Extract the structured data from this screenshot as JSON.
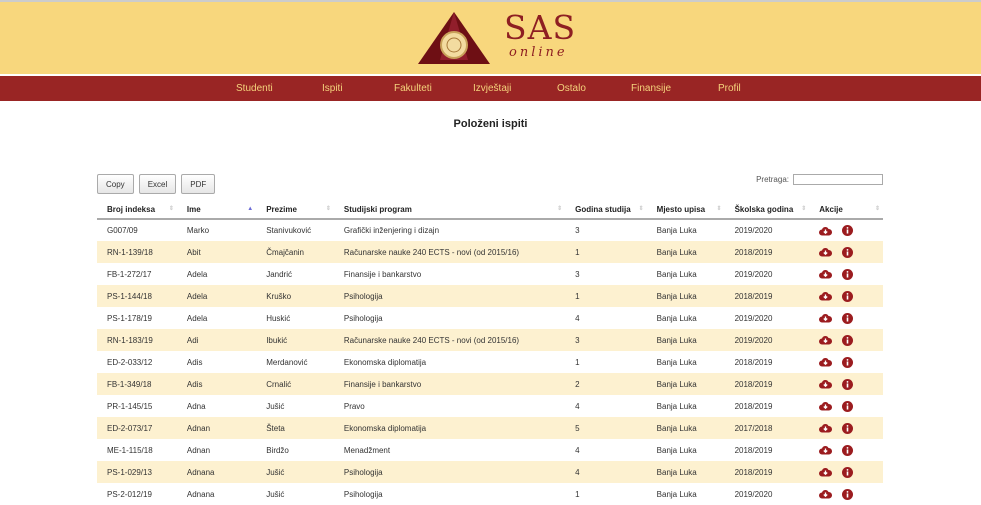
{
  "header": {
    "logo_title": "SAS",
    "logo_subtitle": "online"
  },
  "nav": [
    "Studenti",
    "Ispiti",
    "Fakulteti",
    "Izvještaji",
    "Ostalo",
    "Finansije",
    "Profil"
  ],
  "page_title": "Položeni ispiti",
  "toolbar": {
    "copy": "Copy",
    "excel": "Excel",
    "pdf": "PDF",
    "search_label": "Pretraga:",
    "search_value": ""
  },
  "colors": {
    "header_bg": "#f8d77d",
    "nav_bg": "#992524",
    "accent": "#8e1f22",
    "row_alt": "#fdf1d0"
  },
  "columns": [
    "Broj indeksa",
    "Ime",
    "Prezime",
    "Studijski program",
    "Godina studija",
    "Mjesto upisa",
    "Školska godina",
    "Akcije"
  ],
  "sorted_column": "Ime",
  "action_icons": [
    "cloud-download-icon",
    "info-icon"
  ],
  "rows": [
    [
      "G007/09",
      "Marko",
      "Stanivuković",
      "Grafički inženjering i dizajn",
      "3",
      "Banja Luka",
      "2019/2020"
    ],
    [
      "RN-1-139/18",
      "Abit",
      "Čmajčanin",
      "Računarske nauke 240 ECTS - novi (od 2015/16)",
      "1",
      "Banja Luka",
      "2018/2019"
    ],
    [
      "FB-1-272/17",
      "Adela",
      "Jandrić",
      "Finansije i bankarstvo",
      "3",
      "Banja Luka",
      "2019/2020"
    ],
    [
      "PS-1-144/18",
      "Adela",
      "Kruško",
      "Psihologija",
      "1",
      "Banja Luka",
      "2018/2019"
    ],
    [
      "PS-1-178/19",
      "Adela",
      "Huskić",
      "Psihologija",
      "4",
      "Banja Luka",
      "2019/2020"
    ],
    [
      "RN-1-183/19",
      "Adi",
      "Ibukić",
      "Računarske nauke 240 ECTS - novi (od 2015/16)",
      "3",
      "Banja Luka",
      "2019/2020"
    ],
    [
      "ED-2-033/12",
      "Adis",
      "Merdanović",
      "Ekonomska diplomatija",
      "1",
      "Banja Luka",
      "2018/2019"
    ],
    [
      "FB-1-349/18",
      "Adis",
      "Crnalić",
      "Finansije i bankarstvo",
      "2",
      "Banja Luka",
      "2018/2019"
    ],
    [
      "PR-1-145/15",
      "Adna",
      "Jušić",
      "Pravo",
      "4",
      "Banja Luka",
      "2018/2019"
    ],
    [
      "ED-2-073/17",
      "Adnan",
      "Šteta",
      "Ekonomska diplomatija",
      "5",
      "Banja Luka",
      "2017/2018"
    ],
    [
      "ME-1-115/18",
      "Adnan",
      "Birdžo",
      "Menadžment",
      "4",
      "Banja Luka",
      "2018/2019"
    ],
    [
      "PS-1-029/13",
      "Adnana",
      "Jušić",
      "Psihologija",
      "4",
      "Banja Luka",
      "2018/2019"
    ],
    [
      "PS-2-012/19",
      "Adnana",
      "Jušić",
      "Psihologija",
      "1",
      "Banja Luka",
      "2019/2020"
    ]
  ]
}
